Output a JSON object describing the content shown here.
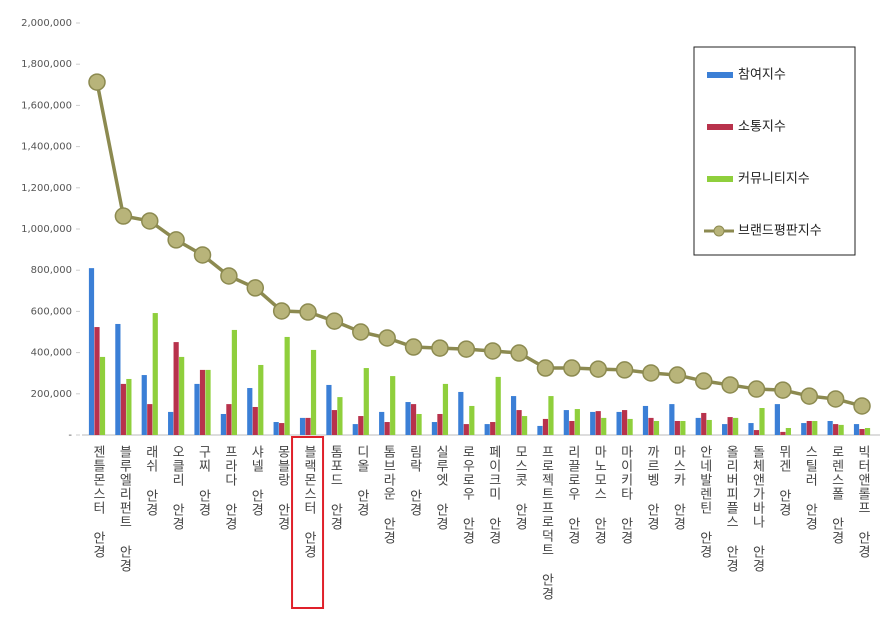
{
  "chart_data": {
    "type": "bar",
    "categories": [
      "젠틀몬스터 안경",
      "블루엘리펀트 안경",
      "래쉬 안경",
      "오클리 안경",
      "구찌 안경",
      "프라다 안경",
      "샤넬 안경",
      "몽블랑 안경",
      "블랙몬스터 안경",
      "톰포드 안경",
      "디올 안경",
      "톰브라운 안경",
      "림락 안경",
      "실루엣 안경",
      "로우로우 안경",
      "페이크미 안경",
      "모스콧 안경",
      "프로젝트프로덕트 안경",
      "리끌로우 안경",
      "마노모스 안경",
      "마이키타 안경",
      "까르벵 안경",
      "마스카 안경",
      "안네발렌틴 안경",
      "올리버피플스 안경",
      "돌체앤가바나 안경",
      "뮈겐 안경",
      "스틸러 안경",
      "로렌스폴 안경",
      "빅터앤롤프 안경"
    ],
    "series": [
      {
        "name": "참여지수",
        "type": "bar",
        "color": "#3b7fd6",
        "values": [
          810000,
          539000,
          291000,
          112000,
          248000,
          102000,
          228000,
          63000,
          83000,
          243000,
          53000,
          112000,
          160000,
          63000,
          209000,
          53000,
          189000,
          44000,
          121000,
          112000,
          112000,
          141000,
          150000,
          83000,
          53000,
          58000,
          150000,
          58000,
          68000,
          53000
        ]
      },
      {
        "name": "소통지수",
        "type": "bar",
        "color": "#b8324c",
        "values": [
          524000,
          248000,
          150000,
          451000,
          316000,
          150000,
          136000,
          58000,
          83000,
          121000,
          92000,
          63000,
          150000,
          102000,
          53000,
          63000,
          121000,
          78000,
          68000,
          116000,
          121000,
          83000,
          68000,
          107000,
          87000,
          24000,
          15000,
          68000,
          53000,
          29000
        ]
      },
      {
        "name": "커뮤니티지수",
        "type": "bar",
        "color": "#8fcf3c",
        "values": [
          379000,
          272000,
          592000,
          379000,
          316000,
          510000,
          340000,
          476000,
          413000,
          184000,
          325000,
          286000,
          102000,
          248000,
          141000,
          282000,
          92000,
          189000,
          126000,
          83000,
          78000,
          68000,
          68000,
          73000,
          83000,
          131000,
          34000,
          68000,
          49000,
          34000
        ]
      },
      {
        "name": "브랜드평판지수",
        "type": "line",
        "color": "#8c8a50",
        "values": [
          1713000,
          1063000,
          1039000,
          947000,
          874000,
          772000,
          714000,
          602000,
          597000,
          553000,
          500000,
          471000,
          427000,
          422000,
          417000,
          408000,
          398000,
          325000,
          325000,
          320000,
          316000,
          301000,
          291000,
          262000,
          243000,
          223000,
          218000,
          189000,
          175000,
          141000
        ]
      }
    ],
    "ylim": [
      0,
      2000000
    ],
    "yticks": [
      {
        "value": 0,
        "label": "-"
      },
      {
        "value": 200000,
        "label": "200,000"
      },
      {
        "value": 400000,
        "label": "400,000"
      },
      {
        "value": 600000,
        "label": "600,000"
      },
      {
        "value": 800000,
        "label": "800,000"
      },
      {
        "value": 1000000,
        "label": "1,000,000"
      },
      {
        "value": 1200000,
        "label": "1,200,000"
      },
      {
        "value": 1400000,
        "label": "1,400,000"
      },
      {
        "value": 1600000,
        "label": "1,600,000"
      },
      {
        "value": 1800000,
        "label": "1,800,000"
      },
      {
        "value": 2000000,
        "label": "2,000,000"
      }
    ],
    "grid": false,
    "legend": "upper right",
    "highlighted_category": 8
  }
}
